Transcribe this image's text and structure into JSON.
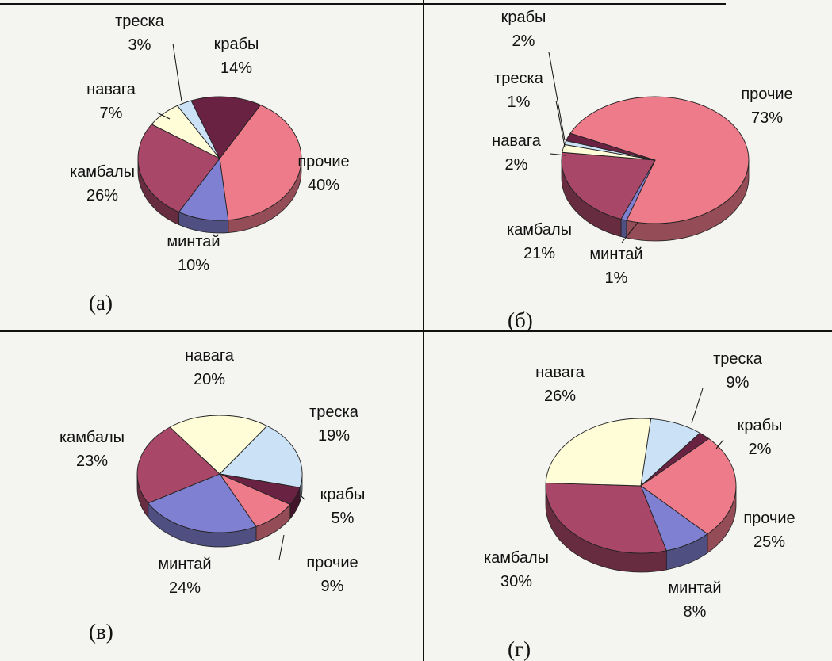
{
  "colors": {
    "прочие": "#ee7b8a",
    "минтай": "#8080d2",
    "камбалы": "#a84767",
    "навага": "#fffcd8",
    "треска": "#cbe1f6",
    "крабы": "#6a2243"
  },
  "chart_data": [
    {
      "type": "pie",
      "panel_label": "(а)",
      "slices": [
        {
          "label": "прочие",
          "value": 40,
          "text": "40%"
        },
        {
          "label": "минтай",
          "value": 10,
          "text": "10%"
        },
        {
          "label": "камбалы",
          "value": 26,
          "text": "26%"
        },
        {
          "label": "навага",
          "value": 7,
          "text": "7%"
        },
        {
          "label": "треска",
          "value": 3,
          "text": "3%"
        },
        {
          "label": "крабы",
          "value": 14,
          "text": "14%"
        }
      ]
    },
    {
      "type": "pie",
      "panel_label": "(б)",
      "slices": [
        {
          "label": "прочие",
          "value": 73,
          "text": "73%"
        },
        {
          "label": "минтай",
          "value": 1,
          "text": "1%"
        },
        {
          "label": "камбалы",
          "value": 21,
          "text": "21%"
        },
        {
          "label": "навага",
          "value": 2,
          "text": "2%"
        },
        {
          "label": "треска",
          "value": 1,
          "text": "1%"
        },
        {
          "label": "крабы",
          "value": 2,
          "text": "2%"
        }
      ]
    },
    {
      "type": "pie",
      "panel_label": "(в)",
      "slices": [
        {
          "label": "треска",
          "value": 19,
          "text": "19%"
        },
        {
          "label": "крабы",
          "value": 5,
          "text": "5%"
        },
        {
          "label": "прочие",
          "value": 9,
          "text": "9%"
        },
        {
          "label": "минтай",
          "value": 24,
          "text": "24%"
        },
        {
          "label": "камбалы",
          "value": 23,
          "text": "23%"
        },
        {
          "label": "навага",
          "value": 20,
          "text": "20%"
        }
      ]
    },
    {
      "type": "pie",
      "panel_label": "(г)",
      "slices": [
        {
          "label": "треска",
          "value": 9,
          "text": "9%"
        },
        {
          "label": "крабы",
          "value": 2,
          "text": "2%"
        },
        {
          "label": "прочие",
          "value": 25,
          "text": "25%"
        },
        {
          "label": "минтай",
          "value": 8,
          "text": "8%"
        },
        {
          "label": "камбалы",
          "value": 30,
          "text": "30%"
        },
        {
          "label": "навага",
          "value": 26,
          "text": "26%"
        }
      ]
    }
  ]
}
